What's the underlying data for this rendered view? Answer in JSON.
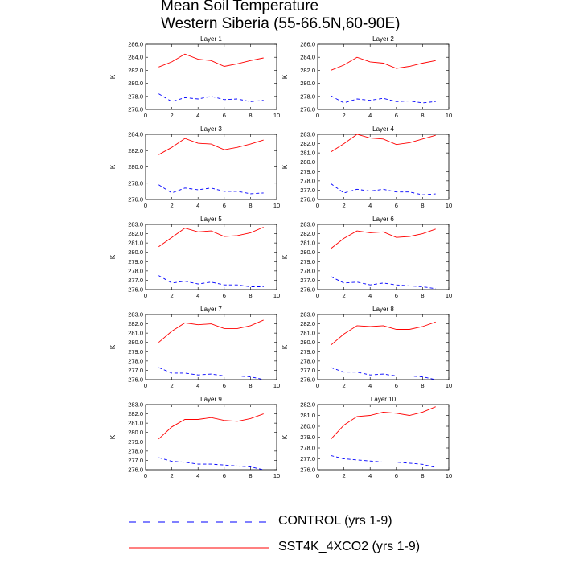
{
  "title": "Mean Soil Temperature",
  "subtitle": "Western Siberia (55-66.5N,60-90E)",
  "colors": {
    "control": "#0000ff",
    "sst4k": "#ff0000"
  },
  "legend": [
    {
      "label": "CONTROL (yrs 1-9)",
      "style": "dashed",
      "color": "#0000ff"
    },
    {
      "label": "SST4K_4XCO2 (yrs 1-9)",
      "style": "solid",
      "color": "#ff0000"
    }
  ],
  "chart_data": [
    {
      "type": "line",
      "title": "Layer 1",
      "ylabel": "K",
      "xlim": [
        0,
        10
      ],
      "ylim": [
        276.0,
        286.0
      ],
      "yticks": [
        276.0,
        278.0,
        280.0,
        282.0,
        284.0,
        286.0
      ],
      "x": [
        1,
        2,
        3,
        4,
        5,
        6,
        7,
        8,
        9
      ],
      "series": [
        {
          "name": "CONTROL (yrs 1-9)",
          "values": [
            278.4,
            277.2,
            277.8,
            277.6,
            278.0,
            277.5,
            277.6,
            277.2,
            277.4
          ]
        },
        {
          "name": "SST4K_4XCO2 (yrs 1-9)",
          "values": [
            282.5,
            283.3,
            284.5,
            283.7,
            283.5,
            282.6,
            283.0,
            283.5,
            283.9
          ]
        }
      ]
    },
    {
      "type": "line",
      "title": "Layer 2",
      "ylabel": "K",
      "xlim": [
        0,
        10
      ],
      "ylim": [
        276.0,
        286.0
      ],
      "yticks": [
        276.0,
        278.0,
        280.0,
        282.0,
        284.0,
        286.0
      ],
      "x": [
        1,
        2,
        3,
        4,
        5,
        6,
        7,
        8,
        9
      ],
      "series": [
        {
          "name": "CONTROL (yrs 1-9)",
          "values": [
            278.1,
            277.0,
            277.6,
            277.4,
            277.7,
            277.2,
            277.3,
            277.0,
            277.2
          ]
        },
        {
          "name": "SST4K_4XCO2 (yrs 1-9)",
          "values": [
            282.0,
            282.8,
            284.0,
            283.3,
            283.1,
            282.3,
            282.6,
            283.1,
            283.5
          ]
        }
      ]
    },
    {
      "type": "line",
      "title": "Layer 3",
      "ylabel": "K",
      "xlim": [
        0,
        10
      ],
      "ylim": [
        276.0,
        284.0
      ],
      "yticks": [
        276.0,
        278.0,
        280.0,
        282.0,
        284.0
      ],
      "x": [
        1,
        2,
        3,
        4,
        5,
        6,
        7,
        8,
        9
      ],
      "series": [
        {
          "name": "CONTROL (yrs 1-9)",
          "values": [
            277.8,
            276.8,
            277.4,
            277.2,
            277.4,
            277.0,
            277.0,
            276.7,
            276.8
          ]
        },
        {
          "name": "SST4K_4XCO2 (yrs 1-9)",
          "values": [
            281.5,
            282.4,
            283.5,
            282.9,
            282.8,
            282.1,
            282.4,
            282.8,
            283.3
          ]
        }
      ]
    },
    {
      "type": "line",
      "title": "Layer 4",
      "ylabel": "K",
      "xlim": [
        0,
        10
      ],
      "ylim": [
        276.0,
        283.0
      ],
      "yticks": [
        276.0,
        277.0,
        278.0,
        279.0,
        280.0,
        281.0,
        282.0,
        283.0
      ],
      "x": [
        1,
        2,
        3,
        4,
        5,
        6,
        7,
        8,
        9
      ],
      "series": [
        {
          "name": "CONTROL (yrs 1-9)",
          "values": [
            277.7,
            276.7,
            277.1,
            276.9,
            277.1,
            276.8,
            276.8,
            276.5,
            276.6
          ]
        },
        {
          "name": "SST4K_4XCO2 (yrs 1-9)",
          "values": [
            281.1,
            282.0,
            283.0,
            282.6,
            282.5,
            281.9,
            282.1,
            282.5,
            282.9
          ]
        }
      ]
    },
    {
      "type": "line",
      "title": "Layer 5",
      "ylabel": "K",
      "xlim": [
        0,
        10
      ],
      "ylim": [
        276.0,
        283.0
      ],
      "yticks": [
        276.0,
        277.0,
        278.0,
        279.0,
        280.0,
        281.0,
        282.0,
        283.0
      ],
      "x": [
        1,
        2,
        3,
        4,
        5,
        6,
        7,
        8,
        9
      ],
      "series": [
        {
          "name": "CONTROL (yrs 1-9)",
          "values": [
            277.5,
            276.7,
            276.9,
            276.6,
            276.8,
            276.5,
            276.5,
            276.3,
            276.3
          ]
        },
        {
          "name": "SST4K_4XCO2 (yrs 1-9)",
          "values": [
            280.6,
            281.6,
            282.6,
            282.2,
            282.3,
            281.7,
            281.8,
            282.1,
            282.7
          ]
        }
      ]
    },
    {
      "type": "line",
      "title": "Layer 6",
      "ylabel": "K",
      "xlim": [
        0,
        10
      ],
      "ylim": [
        276.0,
        283.0
      ],
      "yticks": [
        276.0,
        277.0,
        278.0,
        279.0,
        280.0,
        281.0,
        282.0,
        283.0
      ],
      "x": [
        1,
        2,
        3,
        4,
        5,
        6,
        7,
        8,
        9
      ],
      "series": [
        {
          "name": "CONTROL (yrs 1-9)",
          "values": [
            277.4,
            276.7,
            276.8,
            276.5,
            276.7,
            276.5,
            276.4,
            276.3,
            276.1
          ]
        },
        {
          "name": "SST4K_4XCO2 (yrs 1-9)",
          "values": [
            280.4,
            281.5,
            282.3,
            282.1,
            282.2,
            281.6,
            281.7,
            282.0,
            282.5
          ]
        }
      ]
    },
    {
      "type": "line",
      "title": "Layer 7",
      "ylabel": "K",
      "xlim": [
        0,
        10
      ],
      "ylim": [
        276.0,
        283.0
      ],
      "yticks": [
        276.0,
        277.0,
        278.0,
        279.0,
        280.0,
        281.0,
        282.0,
        283.0
      ],
      "x": [
        1,
        2,
        3,
        4,
        5,
        6,
        7,
        8,
        9
      ],
      "series": [
        {
          "name": "CONTROL (yrs 1-9)",
          "values": [
            277.3,
            276.7,
            276.7,
            276.5,
            276.6,
            276.4,
            276.4,
            276.3,
            276.0
          ]
        },
        {
          "name": "SST4K_4XCO2 (yrs 1-9)",
          "values": [
            280.0,
            281.2,
            282.1,
            281.9,
            282.0,
            281.5,
            281.5,
            281.8,
            282.4
          ]
        }
      ]
    },
    {
      "type": "line",
      "title": "Layer 8",
      "ylabel": "K",
      "xlim": [
        0,
        10
      ],
      "ylim": [
        276.0,
        283.0
      ],
      "yticks": [
        276.0,
        277.0,
        278.0,
        279.0,
        280.0,
        281.0,
        282.0,
        283.0
      ],
      "x": [
        1,
        2,
        3,
        4,
        5,
        6,
        7,
        8,
        9
      ],
      "series": [
        {
          "name": "CONTROL (yrs 1-9)",
          "values": [
            277.3,
            276.8,
            276.8,
            276.5,
            276.6,
            276.4,
            276.4,
            276.3,
            276.0
          ]
        },
        {
          "name": "SST4K_4XCO2 (yrs 1-9)",
          "values": [
            279.7,
            280.9,
            281.8,
            281.7,
            281.8,
            281.4,
            281.4,
            281.7,
            282.2
          ]
        }
      ]
    },
    {
      "type": "line",
      "title": "Layer 9",
      "ylabel": "K",
      "xlim": [
        0,
        10
      ],
      "ylim": [
        276.0,
        283.0
      ],
      "yticks": [
        276.0,
        277.0,
        278.0,
        279.0,
        280.0,
        281.0,
        282.0,
        283.0
      ],
      "x": [
        1,
        2,
        3,
        4,
        5,
        6,
        7,
        8,
        9
      ],
      "series": [
        {
          "name": "CONTROL (yrs 1-9)",
          "values": [
            277.3,
            276.9,
            276.8,
            276.6,
            276.6,
            276.5,
            276.4,
            276.3,
            276.0
          ]
        },
        {
          "name": "SST4K_4XCO2 (yrs 1-9)",
          "values": [
            279.3,
            280.6,
            281.4,
            281.4,
            281.6,
            281.3,
            281.2,
            281.5,
            282.0
          ]
        }
      ]
    },
    {
      "type": "line",
      "title": "Layer 10",
      "ylabel": "K",
      "xlim": [
        0,
        10
      ],
      "ylim": [
        276.0,
        282.0
      ],
      "yticks": [
        276.0,
        277.0,
        278.0,
        279.0,
        280.0,
        281.0,
        282.0
      ],
      "x": [
        1,
        2,
        3,
        4,
        5,
        6,
        7,
        8,
        9
      ],
      "series": [
        {
          "name": "CONTROL (yrs 1-9)",
          "values": [
            277.3,
            277.0,
            276.9,
            276.8,
            276.7,
            276.7,
            276.6,
            276.5,
            276.2
          ]
        },
        {
          "name": "SST4K_4XCO2 (yrs 1-9)",
          "values": [
            278.8,
            280.1,
            280.9,
            281.0,
            281.3,
            281.2,
            281.0,
            281.3,
            281.8
          ]
        }
      ]
    }
  ]
}
